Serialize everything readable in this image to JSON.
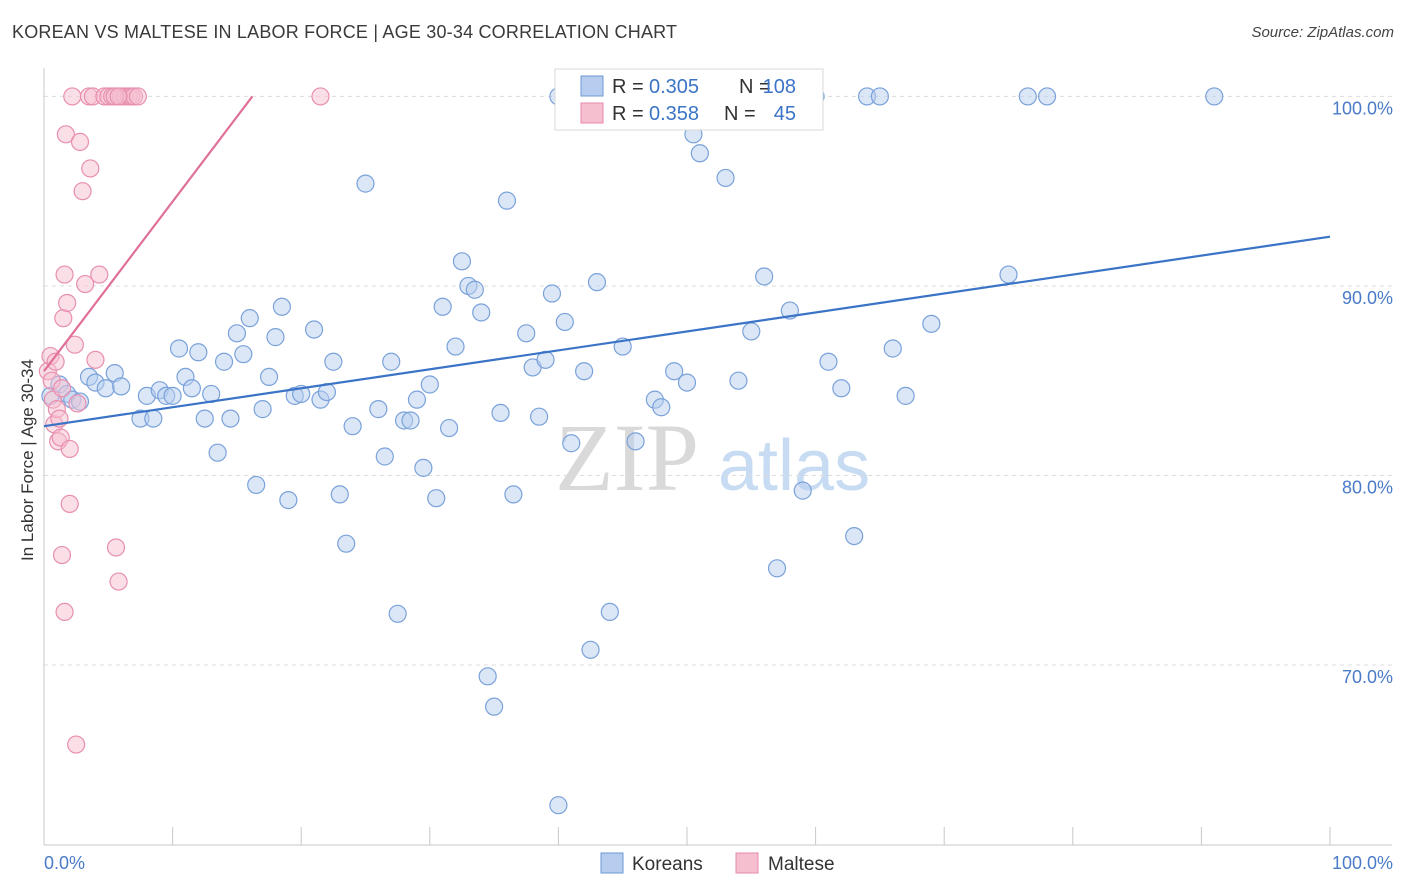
{
  "title": "KOREAN VS MALTESE IN LABOR FORCE | AGE 30-34 CORRELATION CHART",
  "source": "Source: ZipAtlas.com",
  "watermark": {
    "zip": "ZIP",
    "atlas": "atlas"
  },
  "colors": {
    "koreans": "#3b74c6",
    "koreans_fill": "#b7cdef",
    "maltese": "#e0709a",
    "maltese_fill": "#f6bfd0"
  },
  "legend": {
    "rows": [
      {
        "r_label": "R =",
        "r_value": "0.305",
        "n_label": "N =",
        "n_value": "108"
      },
      {
        "r_label": "R =",
        "r_value": "0.358",
        "n_label": "N =",
        "n_value": "45"
      }
    ]
  },
  "bottom_legend": [
    "Koreans",
    "Maltese"
  ],
  "chart_data": {
    "type": "scatter",
    "title": "KOREAN VS MALTESE IN LABOR FORCE | AGE 30-34 CORRELATION CHART",
    "ylabel": "In Labor Force | Age 30-34",
    "xlabel": "",
    "x_tick_labels": [
      "0.0%",
      "100.0%"
    ],
    "y_tick_labels": [
      "70.0%",
      "80.0%",
      "90.0%",
      "100.0%"
    ],
    "y_ticks": [
      70,
      80,
      90,
      100
    ],
    "xlim": [
      0,
      100
    ],
    "ylim": [
      60.5,
      101.5
    ],
    "grid": true,
    "legend_placement": "top-center",
    "series": [
      {
        "name": "Koreans",
        "color": "#3b74c6",
        "trend": {
          "x": [
            0,
            100
          ],
          "y": [
            82.6,
            92.6
          ]
        },
        "x": [
          0.5,
          1.2,
          1.8,
          2.2,
          2.8,
          3.5,
          4.0,
          4.8,
          5.5,
          6.0,
          7.5,
          8.0,
          8.5,
          9.0,
          9.5,
          10.0,
          10.5,
          11.0,
          11.5,
          12.0,
          12.5,
          13.0,
          13.5,
          14.0,
          14.5,
          15.0,
          15.5,
          16.0,
          16.5,
          17.0,
          17.5,
          18.0,
          18.5,
          19.0,
          19.5,
          20.0,
          21.0,
          21.5,
          22.0,
          22.5,
          23.0,
          23.5,
          24.0,
          25.0,
          26.0,
          26.5,
          27.0,
          27.5,
          28.0,
          28.5,
          29.0,
          29.5,
          30.0,
          30.5,
          31.0,
          31.5,
          32.0,
          32.5,
          33.0,
          33.5,
          34.0,
          34.5,
          35.0,
          35.5,
          36.0,
          36.5,
          37.5,
          38.0,
          38.5,
          39.0,
          39.5,
          40.0,
          40.5,
          41.0,
          42.0,
          42.5,
          43.0,
          44.0,
          45.0,
          46.0,
          47.5,
          48.0,
          49.0,
          50.0,
          50.5,
          51.0,
          52.0,
          53.0,
          54.0,
          55.0,
          56.0,
          57.0,
          58.0,
          59.0,
          60.0,
          61.0,
          62.0,
          63.0,
          64.0,
          65.0,
          66.0,
          67.0,
          69.0,
          75.0,
          76.5,
          78.0,
          91.0,
          40.0
        ],
        "y": [
          84.2,
          84.8,
          84.3,
          84.0,
          83.9,
          85.2,
          84.9,
          84.6,
          85.4,
          84.7,
          83.0,
          84.2,
          83.0,
          84.5,
          84.2,
          84.2,
          86.7,
          85.2,
          84.6,
          86.5,
          83.0,
          84.3,
          81.2,
          86.0,
          83.0,
          87.5,
          86.4,
          88.3,
          79.5,
          83.5,
          85.2,
          87.3,
          88.9,
          78.7,
          84.2,
          84.3,
          87.7,
          84.0,
          84.4,
          86.0,
          79.0,
          76.4,
          82.6,
          95.4,
          83.5,
          81.0,
          86.0,
          72.7,
          82.9,
          82.9,
          84.0,
          80.4,
          84.8,
          78.8,
          88.9,
          82.5,
          86.8,
          91.3,
          90.0,
          89.8,
          88.6,
          69.4,
          67.8,
          83.3,
          94.5,
          79.0,
          87.5,
          85.7,
          83.1,
          86.1,
          89.6,
          100,
          88.1,
          81.7,
          85.5,
          70.8,
          90.2,
          72.8,
          86.8,
          81.8,
          84.0,
          83.6,
          85.5,
          84.9,
          98.0,
          97.0,
          100,
          95.7,
          85.0,
          87.6,
          90.5,
          75.1,
          88.7,
          79.2,
          100,
          86.0,
          84.6,
          76.8,
          100,
          100,
          86.7,
          84.2,
          88.0,
          90.6,
          100,
          100,
          100,
          62.6
        ]
      },
      {
        "name": "Maltese",
        "color": "#e0709a",
        "trend": {
          "x": [
            0.0,
            16.2
          ],
          "y": [
            85.5,
            100.0
          ]
        },
        "x": [
          0.3,
          0.5,
          0.6,
          0.7,
          0.8,
          0.9,
          1.0,
          1.1,
          1.2,
          1.3,
          1.4,
          1.5,
          1.6,
          1.7,
          1.8,
          2.0,
          2.2,
          2.4,
          2.6,
          2.8,
          3.0,
          3.2,
          3.5,
          3.8,
          4.0,
          4.3,
          4.7,
          5.0,
          5.3,
          5.6,
          5.8,
          6.0,
          6.3,
          6.6,
          6.8,
          7.0,
          7.3,
          1.4,
          1.6,
          2.0,
          2.5,
          5.5,
          5.8,
          21.5,
          3.6
        ],
        "y": [
          85.5,
          86.3,
          85.0,
          84.0,
          82.7,
          86.0,
          83.5,
          81.8,
          83.0,
          82.0,
          84.6,
          88.3,
          90.6,
          98.0,
          89.1,
          81.4,
          100,
          86.9,
          83.8,
          97.6,
          95.0,
          90.1,
          100,
          100,
          86.1,
          90.6,
          100,
          100,
          100,
          76.2,
          74.4,
          100,
          100,
          100,
          100,
          100,
          100,
          75.8,
          72.8,
          78.5,
          65.8,
          100,
          100,
          100,
          96.2
        ]
      }
    ]
  }
}
